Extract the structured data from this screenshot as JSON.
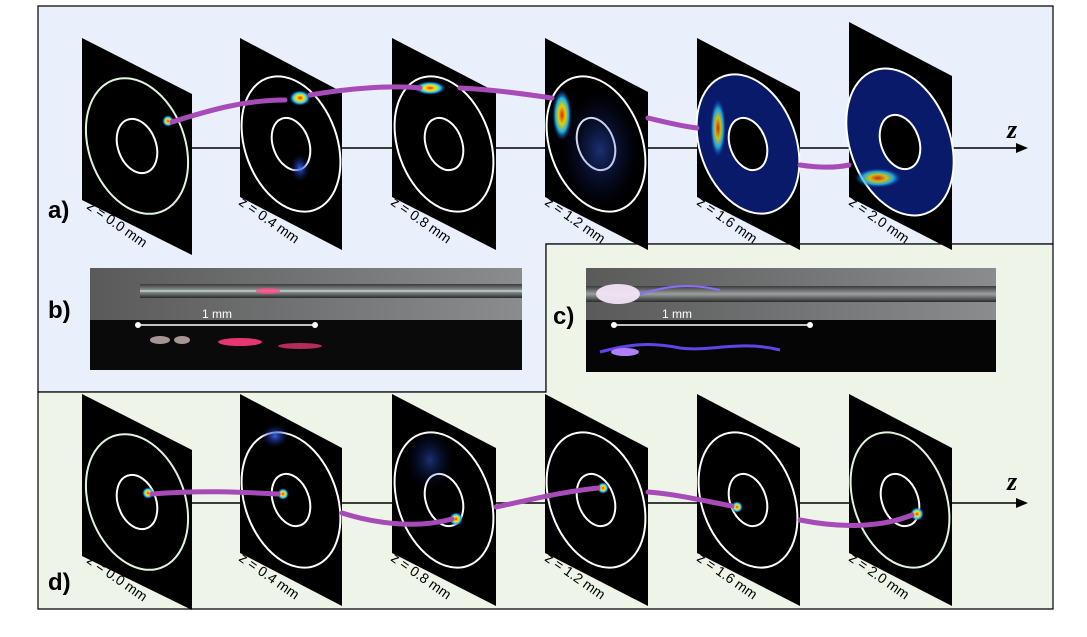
{
  "panels": {
    "a": {
      "letter": "a)",
      "axis_label": "z",
      "z_labels": [
        "z = 0.0 mm",
        "z = 0.4 mm",
        "z = 0.8 mm",
        "z = 1.2 mm",
        "z = 1.6 mm",
        "z = 2.0 mm"
      ]
    },
    "b": {
      "letter": "b)",
      "scale_label": "1 mm"
    },
    "c": {
      "letter": "c)",
      "scale_label": "1 mm"
    },
    "d": {
      "letter": "d)",
      "axis_label": "z",
      "z_labels": [
        "z = 0.0 mm",
        "z = 0.4 mm",
        "z = 0.8 mm",
        "z = 1.2 mm",
        "z = 1.6 mm",
        "z = 2.0 mm"
      ]
    }
  },
  "colors": {
    "panel_a_bg": "#e9effb",
    "panel_c_d_bg": "#eef4e7",
    "beam": "#a64bb8",
    "ring": "#ffffff",
    "slice_bg": "#000000"
  },
  "icons": [
    "z-axis-arrow"
  ]
}
